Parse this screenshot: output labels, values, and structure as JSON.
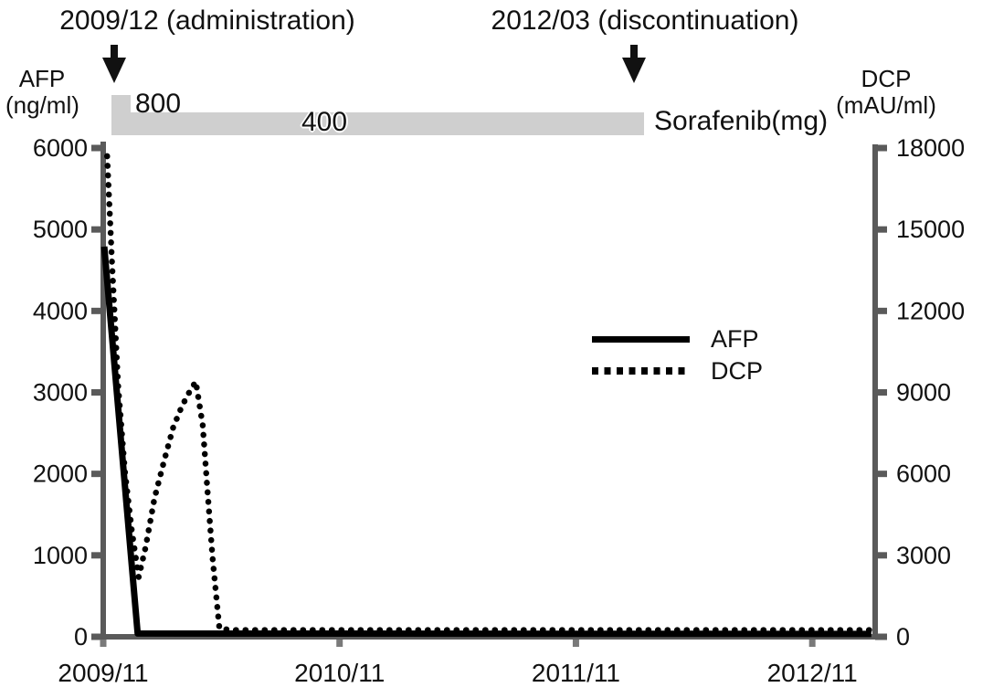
{
  "annotations": {
    "administration": {
      "label": "2009/12 (administration)"
    },
    "discontinuation": {
      "label": "2012/03 (discontinuation)"
    }
  },
  "left_axis": {
    "title_line1": "AFP",
    "title_line2": "(ng/ml)",
    "min": 0,
    "max": 6000,
    "ticks": [
      "6000",
      "5000",
      "4000",
      "3000",
      "2000",
      "1000",
      "0"
    ]
  },
  "right_axis": {
    "title_line1": "DCP",
    "title_line2": "(mAU/ml)",
    "min": 0,
    "max": 18000,
    "ticks": [
      "18000",
      "15000",
      "12000",
      "9000",
      "6000",
      "3000",
      "0"
    ]
  },
  "x_axis": {
    "ticks": [
      "2009/11",
      "2010/11",
      "2011/11",
      "2012/11"
    ]
  },
  "dose_bar": {
    "axis_label": "Sorafenib(mg)",
    "color": "#cfcfcf",
    "segments": [
      {
        "label": "800",
        "dose_mg": 800,
        "start_month": 0.45,
        "end_month": 1.39
      },
      {
        "label": "400",
        "dose_mg": 400,
        "start_month": 1.39,
        "end_month": 27.46
      }
    ]
  },
  "legend": {
    "items": [
      {
        "label": "AFP",
        "style": "solid"
      },
      {
        "label": "DCP",
        "style": "dotted"
      }
    ]
  },
  "colors": {
    "axis": "#5a5a5a",
    "x_tick": "#7a7a7a",
    "bar": "#cfcfcf",
    "series": "#000000"
  },
  "chart_data": {
    "type": "line",
    "title": "",
    "x_unit": "months since 2009/11",
    "x_tick_months": [
      0,
      12,
      24,
      36
    ],
    "x_range_months": [
      0,
      39.2
    ],
    "left_ylim": [
      0,
      6000
    ],
    "right_ylim": [
      0,
      18000
    ],
    "grid": false,
    "legend_position": "center-right",
    "series": [
      {
        "name": "AFP",
        "axis": "left",
        "units": "ng/ml",
        "style": "solid",
        "color": "#000000",
        "points": [
          [
            0.05,
            4790
          ],
          [
            1.75,
            40
          ],
          [
            39.0,
            35
          ]
        ]
      },
      {
        "name": "DCP",
        "axis": "right",
        "units": "mAU/ml",
        "style": "dotted",
        "color": "#000000",
        "points": [
          [
            0.2,
            17700
          ],
          [
            0.45,
            13700
          ],
          [
            0.75,
            9300
          ],
          [
            1.1,
            6100
          ],
          [
            1.45,
            3900
          ],
          [
            1.8,
            2200
          ],
          [
            2.15,
            3300
          ],
          [
            2.6,
            5100
          ],
          [
            3.1,
            6500
          ],
          [
            3.55,
            7700
          ],
          [
            4.0,
            8500
          ],
          [
            4.4,
            9050
          ],
          [
            4.7,
            9400
          ],
          [
            5.05,
            7800
          ],
          [
            5.3,
            5300
          ],
          [
            5.55,
            2900
          ],
          [
            5.75,
            1400
          ],
          [
            5.9,
            300
          ],
          [
            6.6,
            250
          ],
          [
            39.1,
            250
          ]
        ]
      }
    ],
    "annotations": [
      "2009/12 (administration)",
      "2012/03 (discontinuation)"
    ]
  }
}
